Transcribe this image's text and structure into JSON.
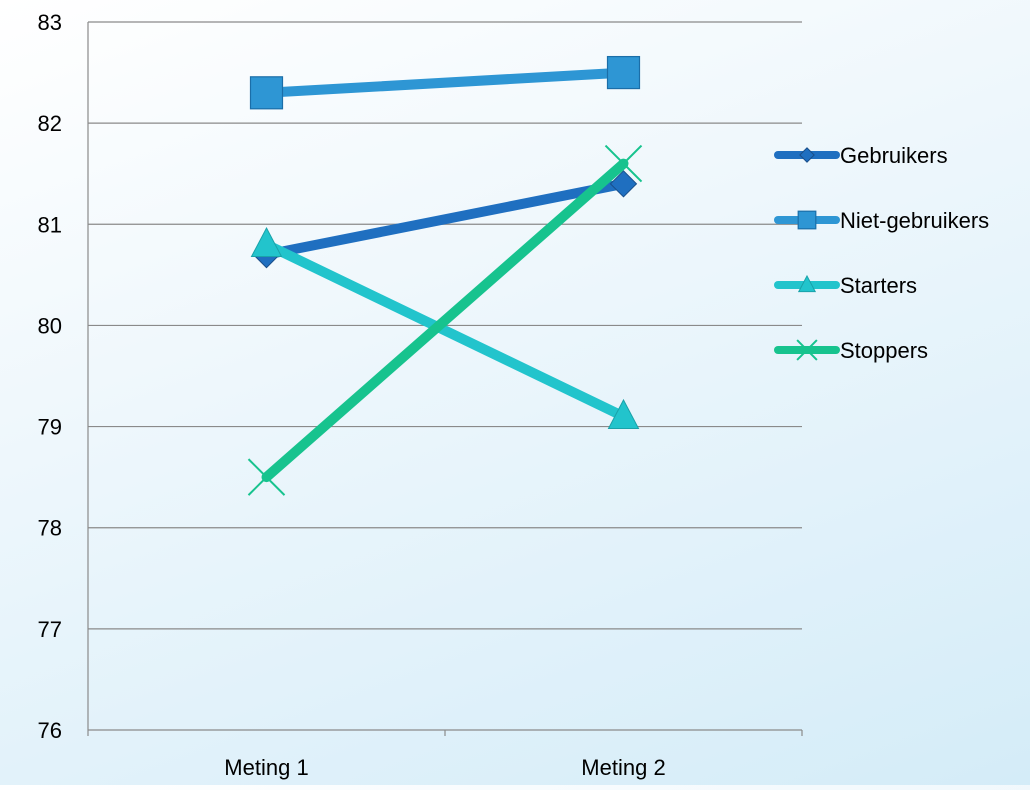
{
  "chart_data": {
    "type": "line",
    "title": "",
    "xlabel": "",
    "ylabel": "",
    "categories": [
      "Meting 1",
      "Meting 2"
    ],
    "ylim": [
      76,
      83
    ],
    "yticks": [
      "76",
      "77",
      "78",
      "79",
      "80",
      "81",
      "82",
      "83"
    ],
    "grid": true,
    "legend_position": "right",
    "series": [
      {
        "name": "Gebruikers",
        "values": [
          80.7,
          81.4
        ],
        "color": "#1f6fc0",
        "marker": "diamond"
      },
      {
        "name": "Niet-gebruikers",
        "values": [
          82.3,
          82.5
        ],
        "color": "#2e96d4",
        "marker": "square"
      },
      {
        "name": "Starters",
        "values": [
          80.8,
          79.1
        ],
        "color": "#22c4cc",
        "marker": "triangle"
      },
      {
        "name": "Stoppers",
        "values": [
          78.5,
          81.6
        ],
        "color": "#17c38e",
        "marker": "x"
      }
    ]
  }
}
